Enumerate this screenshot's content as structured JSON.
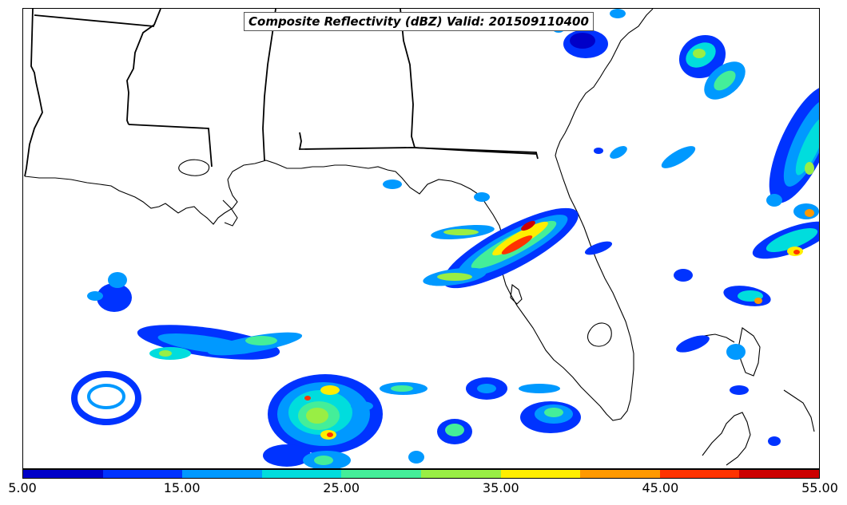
{
  "title": "Composite Reflectivity (dBZ) Valid: 201509110400",
  "colorbar": {
    "colors": [
      "#0000c8",
      "#0033ff",
      "#0099ff",
      "#00dddd",
      "#44ee99",
      "#99ee44",
      "#ffee00",
      "#ff9900",
      "#ff3300",
      "#cc0000"
    ],
    "ticks": [
      "5.00",
      "15.00",
      "25.00",
      "35.00",
      "45.00",
      "55.00"
    ],
    "min": 5,
    "max": 55
  },
  "map": {
    "region": "Gulf of Mexico, Gulf Coast states and Florida",
    "borders_color": "#000000",
    "strongest_echo": "central Florida west coast, north of Tampa Bay"
  }
}
